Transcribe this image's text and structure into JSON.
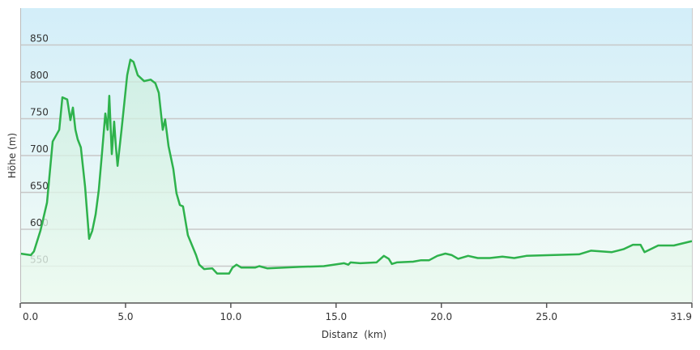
{
  "chart_data": {
    "type": "area",
    "title": "",
    "xlabel": "Distanz  (km)",
    "ylabel": "Höhe (m)",
    "xlim": [
      0,
      31.9
    ],
    "ylim": [
      500,
      900
    ],
    "grid": true,
    "x_ticks": [
      0,
      5,
      10,
      15,
      20,
      25,
      31.9
    ],
    "x_tick_labels": [
      "0.0",
      "5.0",
      "10.0",
      "15.0",
      "20.0",
      "25.0",
      "31.9"
    ],
    "y_ticks": [
      550,
      600,
      650,
      700,
      750,
      800,
      850
    ],
    "y_tick_labels": [
      "550",
      "600",
      "650",
      "700",
      "750",
      "800",
      "850"
    ],
    "colors": {
      "line": "#2eb24c",
      "fill_top": "#cbeedd",
      "fill_bottom": "#ecfaf0",
      "bg_top": "#d3eef9",
      "bg_bottom": "#f4fcf6",
      "grid": "#c8c8c8"
    },
    "x": [
      0,
      0.5,
      0.65,
      0.96,
      1.27,
      1.54,
      1.85,
      2.0,
      2.23,
      2.38,
      2.5,
      2.62,
      2.73,
      2.88,
      3.08,
      3.27,
      3.42,
      3.58,
      3.73,
      3.88,
      4.04,
      4.15,
      4.23,
      4.35,
      4.46,
      4.54,
      4.62,
      4.81,
      5.08,
      5.23,
      5.38,
      5.58,
      5.88,
      6.19,
      6.42,
      6.58,
      6.77,
      6.88,
      7.04,
      7.27,
      7.42,
      7.58,
      7.73,
      7.96,
      8.35,
      8.5,
      8.73,
      9.12,
      9.35,
      9.92,
      10.08,
      10.27,
      10.5,
      11.15,
      11.35,
      11.73,
      13.27,
      14.42,
      15.38,
      15.58,
      15.69,
      16.15,
      16.92,
      17.27,
      17.5,
      17.65,
      17.88,
      18.65,
      19.04,
      19.42,
      19.81,
      20.19,
      20.5,
      20.8,
      21.27,
      21.73,
      22.3,
      22.9,
      23.46,
      24.04,
      25.19,
      26.54,
      27.1,
      28.1,
      28.65,
      29.1,
      29.46,
      29.65,
      30.3,
      31.04,
      31.9
    ],
    "y": [
      567,
      565,
      570,
      598,
      636,
      719,
      735,
      779,
      776,
      748,
      765,
      735,
      722,
      711,
      658,
      587,
      598,
      620,
      653,
      702,
      757,
      735,
      781,
      702,
      746,
      713,
      686,
      735,
      809,
      830,
      827,
      809,
      801,
      803,
      798,
      785,
      735,
      749,
      713,
      682,
      649,
      633,
      631,
      592,
      565,
      552,
      546,
      547,
      540,
      540,
      548,
      552,
      548,
      548,
      550,
      547,
      549,
      550,
      554,
      552,
      555,
      554,
      555,
      564,
      560,
      553,
      555,
      556,
      558,
      558,
      564,
      567,
      565,
      560,
      564,
      561,
      561,
      563,
      561,
      564,
      565,
      566,
      571,
      569,
      573,
      579,
      579,
      569,
      578,
      578,
      584
    ]
  }
}
